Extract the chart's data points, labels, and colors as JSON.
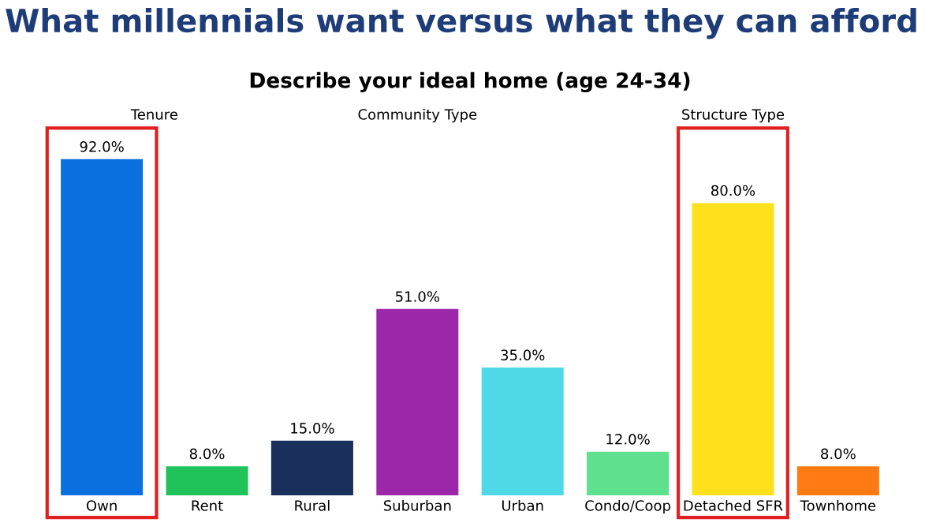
{
  "chart_data": {
    "type": "bar",
    "title": "What millennials want versus what they can afford",
    "subtitle": "Describe your ideal home (age 24-34)",
    "annotations": [
      "Tenure",
      "Community Type",
      "Structure Type"
    ],
    "categories": [
      "Own",
      "Rent",
      "Rural",
      "Suburban",
      "Urban",
      "Condo/Coop",
      "Detached SFR",
      "Townhome"
    ],
    "values": [
      92,
      8,
      15,
      51,
      35,
      12,
      80,
      8
    ],
    "value_labels": [
      "92.0%",
      "8.0%",
      "15.0%",
      "51.0%",
      "35.0%",
      "12.0%",
      "80.0%",
      "8.0%"
    ],
    "colors": [
      "#0a70e0",
      "#1fc35a",
      "#1b2f5c",
      "#9c27a8",
      "#4fd8e6",
      "#5fe08e",
      "#ffe01c",
      "#ff7a12"
    ],
    "grid": false,
    "legend": false
  }
}
